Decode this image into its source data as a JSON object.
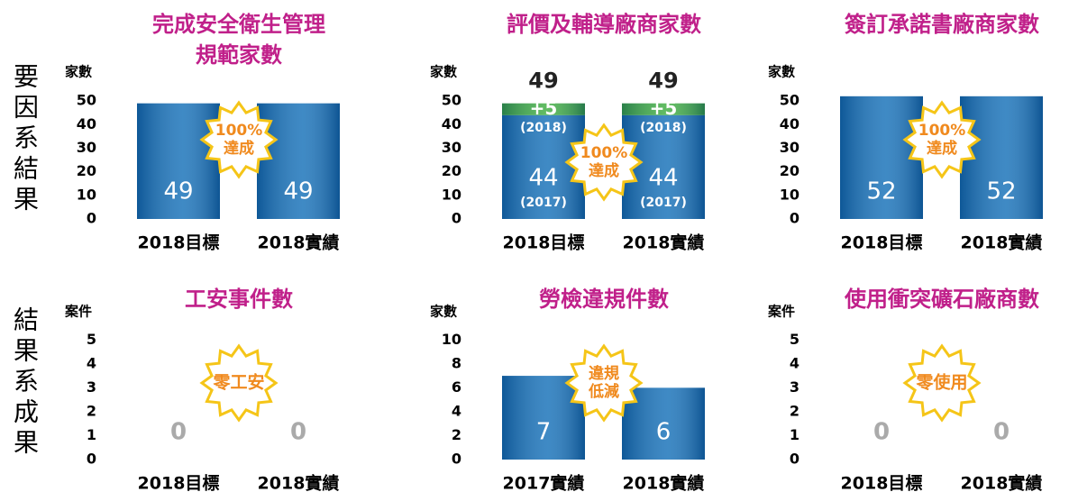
{
  "row_labels": [
    "要因系結果",
    "結果系成果"
  ],
  "chart_data": [
    {
      "type": "bar",
      "title": [
        "完成安全衛生管理",
        "規範家數"
      ],
      "y_label": "家數",
      "categories": [
        "2018目標",
        "2018實績"
      ],
      "values": [
        49,
        49
      ],
      "color": "#1570b8",
      "ylim": [
        0,
        55
      ],
      "yticks": [
        0,
        10,
        20,
        30,
        40,
        50
      ],
      "badge": [
        "100%",
        "達成"
      ]
    },
    {
      "type": "stacked_bar",
      "title": [
        "評價及輔導廠商家數"
      ],
      "y_label": "家數",
      "categories": [
        "2018目標",
        "2018實績"
      ],
      "series": [
        {
          "name": "(2017)",
          "color": "#1570b8",
          "values": [
            44,
            44
          ]
        },
        {
          "name": "(2018)",
          "color": "#3fae3f",
          "values": [
            5,
            5
          ],
          "value_labels": [
            "+5",
            "+5"
          ]
        }
      ],
      "totals": [
        49,
        49
      ],
      "ylim": [
        0,
        55
      ],
      "yticks": [
        0,
        10,
        20,
        30,
        40,
        50
      ],
      "badge": [
        "100%",
        "達成"
      ]
    },
    {
      "type": "bar",
      "title": [
        "簽訂承諾書廠商家數"
      ],
      "y_label": "家數",
      "categories": [
        "2018目標",
        "2018實績"
      ],
      "values": [
        52,
        52
      ],
      "color": "#1570b8",
      "ylim": [
        0,
        55
      ],
      "yticks": [
        0,
        10,
        20,
        30,
        40,
        50
      ],
      "badge": [
        "100%",
        "達成"
      ]
    },
    {
      "type": "bar",
      "title": [
        "工安事件數"
      ],
      "y_label": "案件",
      "categories": [
        "2018目標",
        "2018實績"
      ],
      "values": [
        0,
        0
      ],
      "color": "#1570b8",
      "ylim": [
        0,
        5.5
      ],
      "yticks": [
        0,
        1,
        2,
        3,
        4,
        5
      ],
      "badge": [
        "零工安"
      ]
    },
    {
      "type": "bar",
      "title": [
        "勞檢違規件數"
      ],
      "y_label": "家數",
      "categories": [
        "2017實績",
        "2018實績"
      ],
      "values": [
        7,
        6
      ],
      "color": "#1570b8",
      "ylim": [
        0,
        11
      ],
      "yticks": [
        0,
        2,
        4,
        6,
        8,
        10
      ],
      "badge": [
        "違規",
        "低減"
      ]
    },
    {
      "type": "bar",
      "title": [
        "使用衝突礦石廠商數"
      ],
      "y_label": "案件",
      "categories": [
        "2018目標",
        "2018實績"
      ],
      "values": [
        0,
        0
      ],
      "color": "#1570b8",
      "ylim": [
        0,
        5.5
      ],
      "yticks": [
        0,
        1,
        2,
        3,
        4,
        5
      ],
      "badge": [
        "零使用"
      ]
    }
  ]
}
